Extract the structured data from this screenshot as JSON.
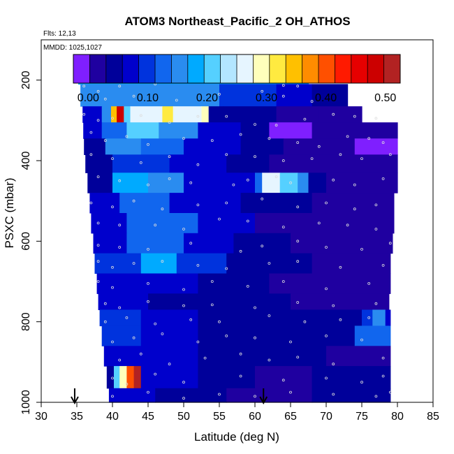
{
  "chart_data": {
    "type": "heatmap",
    "title": "ATOM3 Northeast_Pacific_2 OH_ATHOS",
    "flights_label": "Flts: 12,13",
    "date_label": "MMDD: 1025,1027",
    "xlabel": "Latitude (deg N)",
    "ylabel": "PSXC (mbar)",
    "xlim": [
      30,
      85
    ],
    "ylim": [
      1000,
      100
    ],
    "x_ticks": [
      "30",
      "35",
      "40",
      "45",
      "50",
      "55",
      "60",
      "65",
      "70",
      "75",
      "80",
      "85"
    ],
    "y_ticks": [
      "200",
      "400",
      "600",
      "800",
      "1000"
    ],
    "colorbar": {
      "range": [
        -0.025,
        0.525
      ],
      "ticks": [
        "0.00",
        "0.10",
        "0.20",
        "0.30",
        "0.40",
        "0.50"
      ],
      "colors": [
        "#7f1fff",
        "#1f00a0",
        "#00009a",
        "#0000cc",
        "#0033dd",
        "#1166ee",
        "#2a8cf0",
        "#00aaff",
        "#55d0ff",
        "#b3e6ff",
        "#e6f5ff",
        "#ffffbb",
        "#ffea40",
        "#ffc000",
        "#ff8c00",
        "#ff5000",
        "#ff1a00",
        "#e60000",
        "#cc0000",
        "#b22222"
      ]
    },
    "arrows_lat": [
      34.7,
      61.2
    ],
    "rows": [
      {
        "p": [
          170,
          210
        ],
        "segments": [
          [
            35.2,
            67.5,
            0.17
          ]
        ]
      },
      {
        "p": [
          210,
          265
        ],
        "segments": [
          [
            35.5,
            55,
            0.14
          ],
          [
            55,
            63,
            0.11
          ],
          [
            63,
            68,
            0.06
          ],
          [
            68,
            73,
            0.04
          ]
        ]
      },
      {
        "p": [
          265,
          305
        ],
        "segments": [
          [
            35.8,
            38.5,
            0.06
          ],
          [
            38.5,
            39.8,
            0.15
          ],
          [
            39.8,
            40.6,
            0.35
          ],
          [
            40.6,
            41.6,
            0.47
          ],
          [
            41.6,
            42.5,
            0.2
          ],
          [
            42.5,
            47,
            0.25
          ],
          [
            47,
            48.5,
            0.33
          ],
          [
            48.5,
            52.5,
            0.27
          ],
          [
            52.5,
            53.5,
            0.3
          ],
          [
            53.5,
            55.5,
            0.05
          ],
          [
            55.5,
            63,
            0.04
          ],
          [
            63,
            69,
            0.03
          ],
          [
            69,
            75,
            0.02
          ]
        ]
      },
      {
        "p": [
          305,
          345
        ],
        "segments": [
          [
            35.9,
            38.5,
            0.06
          ],
          [
            38.5,
            42,
            0.13
          ],
          [
            42,
            46.5,
            0.22
          ],
          [
            46.5,
            52,
            0.14
          ],
          [
            52,
            58,
            0.08
          ],
          [
            58,
            62,
            0.04
          ],
          [
            62,
            68,
            0.0
          ],
          [
            68,
            80,
            0.02
          ]
        ]
      },
      {
        "p": [
          345,
          385
        ],
        "segments": [
          [
            36,
            39,
            0.05
          ],
          [
            39,
            44,
            0.16
          ],
          [
            44,
            50,
            0.12
          ],
          [
            50,
            58,
            0.06
          ],
          [
            58,
            64,
            0.04
          ],
          [
            64,
            74,
            0.02
          ],
          [
            74,
            80,
            0.0
          ]
        ]
      },
      {
        "p": [
          385,
          430
        ],
        "segments": [
          [
            36.2,
            40,
            0.05
          ],
          [
            40,
            48,
            0.11
          ],
          [
            48,
            56,
            0.08
          ],
          [
            56,
            62,
            0.04
          ],
          [
            62,
            70,
            0.02
          ],
          [
            70,
            80,
            0.01
          ]
        ]
      },
      {
        "p": [
          430,
          480
        ],
        "segments": [
          [
            36.5,
            40,
            0.05
          ],
          [
            40,
            45,
            0.17
          ],
          [
            45,
            50,
            0.14
          ],
          [
            50,
            60,
            0.06
          ],
          [
            60,
            61,
            0.13
          ],
          [
            61,
            63.5,
            0.25
          ],
          [
            63.5,
            66,
            0.2
          ],
          [
            66,
            67.5,
            0.15
          ],
          [
            67.5,
            70,
            0.05
          ],
          [
            70,
            80,
            0.02
          ]
        ]
      },
      {
        "p": [
          480,
          530
        ],
        "segments": [
          [
            36.8,
            41,
            0.06
          ],
          [
            41,
            48,
            0.13
          ],
          [
            48,
            58,
            0.07
          ],
          [
            58,
            68,
            0.04
          ],
          [
            68,
            79.5,
            0.01
          ]
        ]
      },
      {
        "p": [
          530,
          580
        ],
        "segments": [
          [
            37,
            42,
            0.07
          ],
          [
            42,
            52,
            0.12
          ],
          [
            52,
            60,
            0.06
          ],
          [
            60,
            70,
            0.03
          ],
          [
            70,
            79.5,
            0.02
          ]
        ]
      },
      {
        "p": [
          580,
          630
        ],
        "segments": [
          [
            37.3,
            42,
            0.06
          ],
          [
            42,
            50,
            0.12
          ],
          [
            50,
            57,
            0.08
          ],
          [
            57,
            65,
            0.04
          ],
          [
            65,
            79.3,
            0.01
          ]
        ]
      },
      {
        "p": [
          630,
          680
        ],
        "segments": [
          [
            37.5,
            44,
            0.11
          ],
          [
            44,
            49,
            0.18
          ],
          [
            49,
            56,
            0.09
          ],
          [
            56,
            68,
            0.05
          ],
          [
            68,
            79,
            0.02
          ]
        ]
      },
      {
        "p": [
          680,
          730
        ],
        "segments": [
          [
            37.8,
            44,
            0.08
          ],
          [
            44,
            52,
            0.06
          ],
          [
            52,
            62,
            0.04
          ],
          [
            62,
            79,
            0.02
          ]
        ]
      },
      {
        "p": [
          730,
          770
        ],
        "segments": [
          [
            38,
            45,
            0.06
          ],
          [
            45,
            55,
            0.05
          ],
          [
            55,
            65,
            0.04
          ],
          [
            65,
            78.8,
            0.03
          ]
        ]
      },
      {
        "p": [
          770,
          810
        ],
        "segments": [
          [
            38.2,
            44,
            0.11
          ],
          [
            44,
            52,
            0.08
          ],
          [
            52,
            60,
            0.05
          ],
          [
            60,
            75,
            0.04
          ],
          [
            75,
            76.5,
            0.1
          ],
          [
            76.5,
            78.3,
            0.15
          ],
          [
            78.3,
            79,
            0.07
          ]
        ]
      },
      {
        "p": [
          810,
          860
        ],
        "segments": [
          [
            38.5,
            44,
            0.09
          ],
          [
            44,
            52,
            0.06
          ],
          [
            52,
            62,
            0.04
          ],
          [
            62,
            74,
            0.05
          ],
          [
            74,
            79,
            0.12
          ]
        ]
      },
      {
        "p": [
          860,
          910
        ],
        "segments": [
          [
            38.8,
            44,
            0.07
          ],
          [
            44,
            52,
            0.06
          ],
          [
            52,
            62,
            0.04
          ],
          [
            62,
            70,
            0.05
          ],
          [
            70,
            79,
            0.03
          ]
        ]
      },
      {
        "p": [
          910,
          965
        ],
        "segments": [
          [
            39.2,
            40.2,
            0.05
          ],
          [
            40.2,
            41,
            0.22
          ],
          [
            41,
            42,
            0.3
          ],
          [
            42,
            43,
            0.4
          ],
          [
            43,
            44,
            0.5
          ],
          [
            44,
            52,
            0.07
          ],
          [
            52,
            60,
            0.04
          ],
          [
            60,
            68,
            0.02
          ],
          [
            68,
            79,
            0.04
          ]
        ]
      },
      {
        "p": [
          965,
          1000
        ],
        "segments": [
          [
            39.5,
            46,
            0.06
          ],
          [
            46,
            56,
            0.04
          ],
          [
            56,
            68,
            0.03
          ],
          [
            68,
            79,
            0.04
          ]
        ]
      }
    ],
    "points": [
      [
        36,
        215
      ],
      [
        37,
        200
      ],
      [
        38,
        228
      ],
      [
        39,
        247
      ],
      [
        41,
        215
      ],
      [
        43,
        240
      ],
      [
        46,
        210
      ],
      [
        49,
        250
      ],
      [
        55,
        235
      ],
      [
        61,
        228
      ],
      [
        64,
        213
      ],
      [
        66,
        215
      ],
      [
        64,
        240
      ],
      [
        68,
        253
      ],
      [
        36,
        285
      ],
      [
        38,
        300
      ],
      [
        40,
        295
      ],
      [
        44,
        288
      ],
      [
        48,
        305
      ],
      [
        52,
        290
      ],
      [
        56,
        290
      ],
      [
        60,
        310
      ],
      [
        63,
        312
      ],
      [
        67,
        297
      ],
      [
        71,
        285
      ],
      [
        74,
        290
      ],
      [
        77,
        295
      ],
      [
        37,
        330
      ],
      [
        39,
        350
      ],
      [
        42,
        340
      ],
      [
        45,
        360
      ],
      [
        50,
        345
      ],
      [
        54,
        350
      ],
      [
        58,
        335
      ],
      [
        62,
        345
      ],
      [
        66,
        355
      ],
      [
        69,
        365
      ],
      [
        73,
        340
      ],
      [
        76,
        345
      ],
      [
        78,
        355
      ],
      [
        37,
        385
      ],
      [
        40,
        395
      ],
      [
        44,
        405
      ],
      [
        48,
        390
      ],
      [
        52,
        410
      ],
      [
        56,
        385
      ],
      [
        60,
        390
      ],
      [
        64,
        400
      ],
      [
        68,
        395
      ],
      [
        72,
        385
      ],
      [
        75,
        395
      ],
      [
        79,
        385
      ],
      [
        38,
        440
      ],
      [
        41,
        450
      ],
      [
        45,
        460
      ],
      [
        48,
        445
      ],
      [
        51,
        455
      ],
      [
        57,
        460
      ],
      [
        59,
        448
      ],
      [
        63,
        440
      ],
      [
        65,
        455
      ],
      [
        71,
        448
      ],
      [
        74,
        460
      ],
      [
        78,
        445
      ],
      [
        37,
        505
      ],
      [
        40,
        515
      ],
      [
        43,
        500
      ],
      [
        47,
        520
      ],
      [
        52,
        510
      ],
      [
        56,
        505
      ],
      [
        61,
        495
      ],
      [
        66,
        515
      ],
      [
        70,
        505
      ],
      [
        74,
        520
      ],
      [
        77,
        510
      ],
      [
        38,
        555
      ],
      [
        41,
        560
      ],
      [
        46,
        560
      ],
      [
        50,
        570
      ],
      [
        55,
        545
      ],
      [
        59,
        550
      ],
      [
        64,
        565
      ],
      [
        69,
        555
      ],
      [
        73,
        560
      ],
      [
        77,
        570
      ],
      [
        38,
        610
      ],
      [
        41,
        615
      ],
      [
        45,
        620
      ],
      [
        51,
        605
      ],
      [
        58,
        625
      ],
      [
        61,
        612
      ],
      [
        66,
        600
      ],
      [
        70,
        615
      ],
      [
        75,
        620
      ],
      [
        79,
        605
      ],
      [
        38,
        650
      ],
      [
        40,
        665
      ],
      [
        43,
        655
      ],
      [
        47,
        650
      ],
      [
        52,
        660
      ],
      [
        56,
        668
      ],
      [
        62,
        655
      ],
      [
        66,
        650
      ],
      [
        72,
        665
      ],
      [
        78,
        660
      ],
      [
        38,
        700
      ],
      [
        40,
        715
      ],
      [
        45,
        705
      ],
      [
        50,
        720
      ],
      [
        54,
        700
      ],
      [
        59,
        712
      ],
      [
        64,
        700
      ],
      [
        70,
        718
      ],
      [
        76,
        705
      ],
      [
        39,
        755
      ],
      [
        41,
        765
      ],
      [
        45,
        750
      ],
      [
        50,
        760
      ],
      [
        54,
        758
      ],
      [
        60,
        765
      ],
      [
        66,
        752
      ],
      [
        71,
        760
      ],
      [
        77,
        755
      ],
      [
        39,
        800
      ],
      [
        42,
        790
      ],
      [
        46,
        805
      ],
      [
        51,
        795
      ],
      [
        55,
        800
      ],
      [
        62,
        785
      ],
      [
        67,
        800
      ],
      [
        72,
        795
      ],
      [
        76,
        790
      ],
      [
        40,
        850
      ],
      [
        43,
        840
      ],
      [
        47,
        830
      ],
      [
        52,
        850
      ],
      [
        56,
        835
      ],
      [
        60,
        840
      ],
      [
        65,
        850
      ],
      [
        70,
        835
      ],
      [
        75,
        845
      ],
      [
        41,
        895
      ],
      [
        44,
        880
      ],
      [
        48,
        905
      ],
      [
        53,
        890
      ],
      [
        58,
        880
      ],
      [
        62,
        895
      ],
      [
        66,
        888
      ],
      [
        71,
        905
      ],
      [
        78,
        890
      ],
      [
        40,
        940
      ],
      [
        42,
        955
      ],
      [
        46,
        930
      ],
      [
        50,
        950
      ],
      [
        58,
        935
      ],
      [
        64,
        945
      ],
      [
        70,
        940
      ],
      [
        75,
        950
      ],
      [
        78,
        935
      ],
      [
        40,
        985
      ],
      [
        45,
        975
      ],
      [
        50,
        990
      ],
      [
        55,
        980
      ],
      [
        60,
        985
      ],
      [
        65,
        975
      ],
      [
        71,
        980
      ],
      [
        77,
        985
      ],
      [
        79,
        975
      ]
    ]
  }
}
